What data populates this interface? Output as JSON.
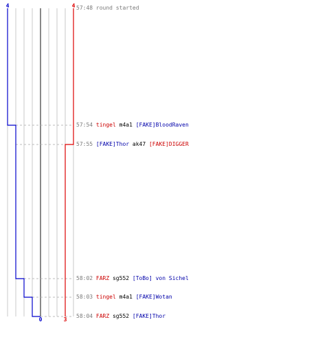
{
  "colors": {
    "team_blue": "#0000cc",
    "team_red": "#dd0000",
    "grid": "#c8c8c8",
    "center": "#888888",
    "dash": "#bbbbbb",
    "time": "#7a7a7a"
  },
  "chart_data": {
    "type": "line",
    "title": "",
    "series": [
      {
        "team": "blue",
        "start_count": 4,
        "end_count": 0
      },
      {
        "team": "red",
        "start_count": 4,
        "end_count": 3
      }
    ],
    "start_labels": {
      "blue": "4",
      "red": "4"
    },
    "end_labels": {
      "blue": "0",
      "red": "3"
    }
  },
  "events": [
    {
      "time": "57:48",
      "kind": "start",
      "text": "round started",
      "blue_alive": 4,
      "red_alive": 4
    },
    {
      "time": "57:54",
      "kind": "kill",
      "killer": "tingel",
      "killer_team": "red",
      "weapon": "m4a1",
      "victim": "[FAKE]BloodRaven",
      "victim_team": "blue",
      "blue_alive": 3,
      "red_alive": 4
    },
    {
      "time": "57:55",
      "kind": "kill",
      "killer": "[FAKE]Thor",
      "killer_team": "blue",
      "weapon": "ak47",
      "victim": "[FAKE]DIGGER",
      "victim_team": "red",
      "blue_alive": 3,
      "red_alive": 3
    },
    {
      "time": "58:02",
      "kind": "kill",
      "killer": "FARZ",
      "killer_team": "red",
      "weapon": "sg552",
      "victim": "[ToBo] von Sichel",
      "victim_team": "blue",
      "blue_alive": 2,
      "red_alive": 3
    },
    {
      "time": "58:03",
      "kind": "kill",
      "killer": "tingel",
      "killer_team": "red",
      "weapon": "m4a1",
      "victim": "[FAKE]Wotan",
      "victim_team": "blue",
      "blue_alive": 1,
      "red_alive": 3
    },
    {
      "time": "58:04",
      "kind": "kill",
      "killer": "FARZ",
      "killer_team": "red",
      "weapon": "sg552",
      "victim": "[FAKE]Thor",
      "victim_team": "blue",
      "blue_alive": 0,
      "red_alive": 3
    }
  ]
}
